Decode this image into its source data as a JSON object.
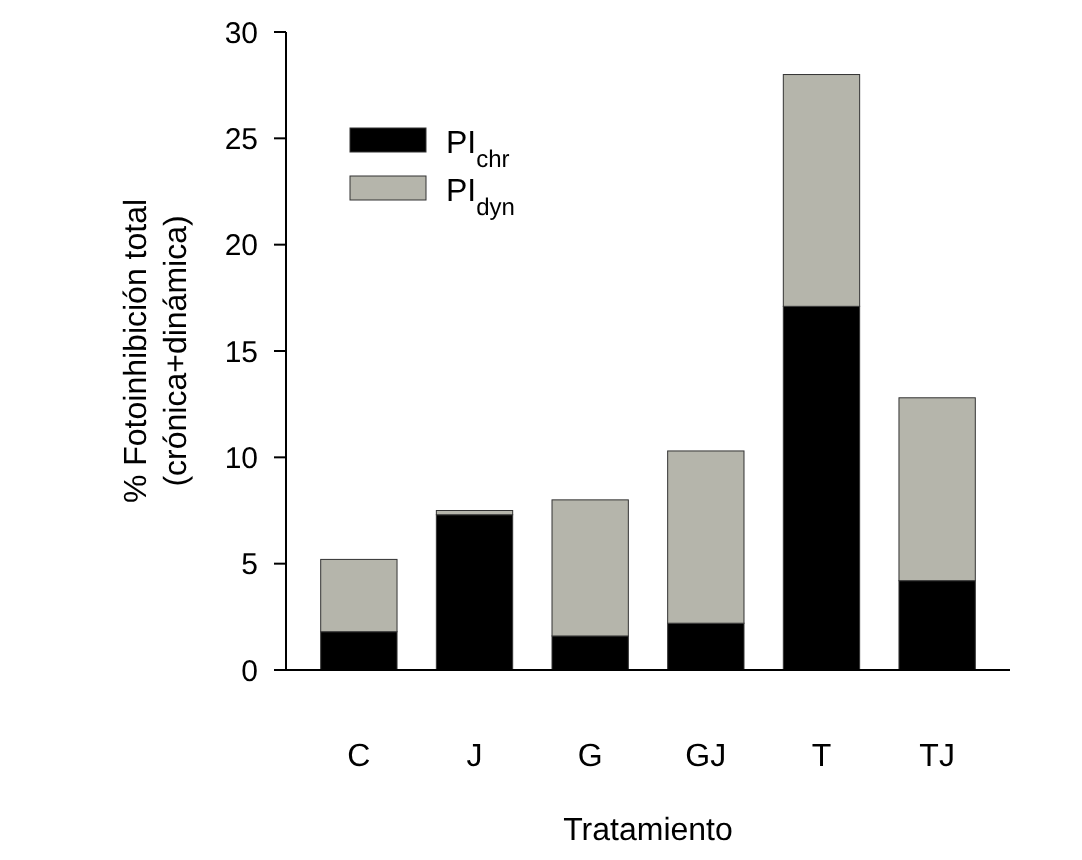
{
  "chart_data": {
    "type": "bar",
    "stacked": true,
    "xlabel": "Tratamiento",
    "ylabel": "% Fotoinhibición total\n(crónica+dinámica)",
    "categories": [
      "C",
      "J",
      "G",
      "GJ",
      "T",
      "TJ"
    ],
    "series": [
      {
        "name": "PI$_{chr}$",
        "color": "#000000",
        "values": [
          1.8,
          7.3,
          1.6,
          2.2,
          17.1,
          4.2
        ]
      },
      {
        "name": "PI$_{dyn}$",
        "color": "#b5b5ab",
        "values": [
          3.4,
          0.2,
          6.4,
          8.1,
          10.9,
          8.6
        ]
      }
    ],
    "ylim": [
      0,
      30
    ],
    "yticks": [
      0,
      5,
      10,
      15,
      20,
      25,
      30
    ],
    "legend": "top left"
  }
}
